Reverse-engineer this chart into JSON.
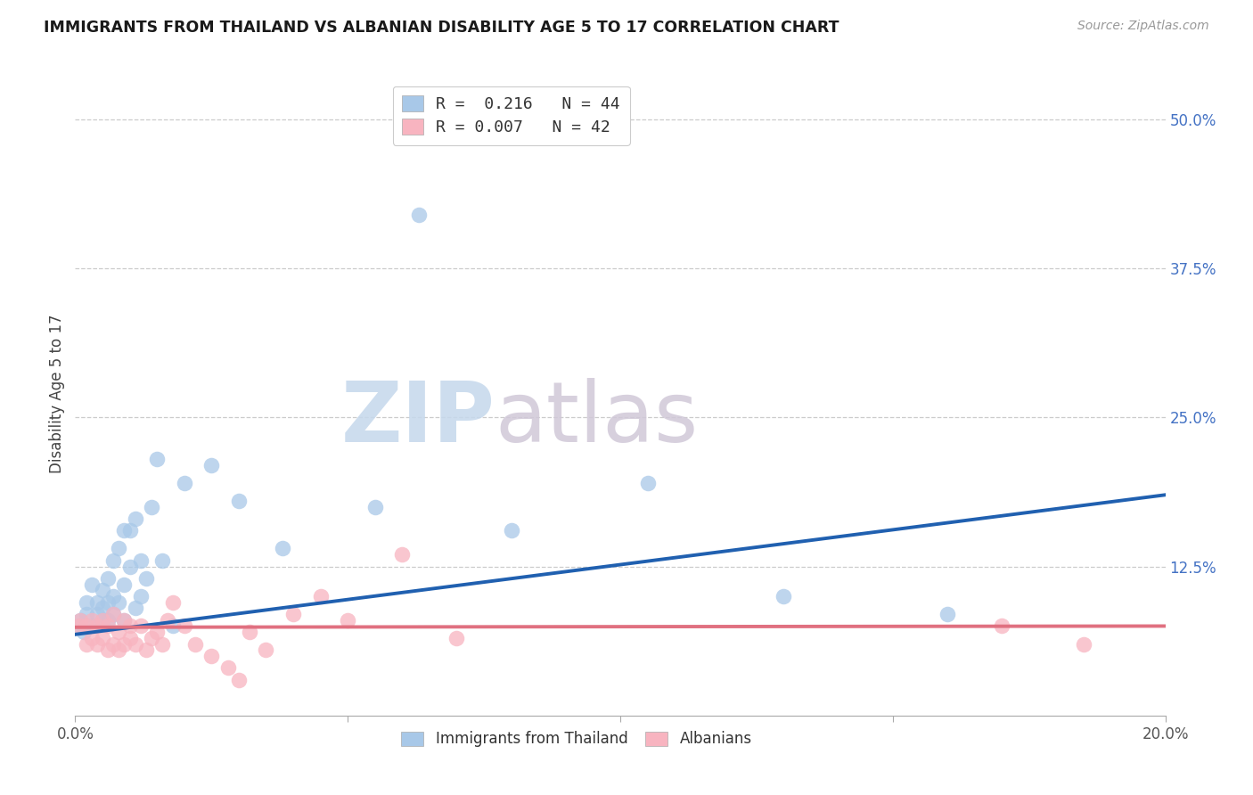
{
  "title": "IMMIGRANTS FROM THAILAND VS ALBANIAN DISABILITY AGE 5 TO 17 CORRELATION CHART",
  "source": "Source: ZipAtlas.com",
  "ylabel": "Disability Age 5 to 17",
  "xlim": [
    0.0,
    0.2
  ],
  "ylim": [
    0.0,
    0.54
  ],
  "xticks": [
    0.0,
    0.05,
    0.1,
    0.15,
    0.2
  ],
  "xtick_labels": [
    "0.0%",
    "",
    "",
    "",
    "20.0%"
  ],
  "ytick_positions_right": [
    0.125,
    0.25,
    0.375,
    0.5
  ],
  "ytick_labels_right": [
    "12.5%",
    "25.0%",
    "37.5%",
    "50.0%"
  ],
  "legend_label1": "R =  0.216   N = 44",
  "legend_label2": "R = 0.007   N = 42",
  "color_blue": "#a8c8e8",
  "color_pink": "#f8b4c0",
  "line_blue": "#2060b0",
  "line_pink": "#e07080",
  "background": "#ffffff",
  "watermark_zip": "ZIP",
  "watermark_atlas": "atlas",
  "thai_x": [
    0.0008,
    0.001,
    0.0015,
    0.002,
    0.002,
    0.003,
    0.003,
    0.004,
    0.004,
    0.005,
    0.005,
    0.005,
    0.006,
    0.006,
    0.006,
    0.007,
    0.007,
    0.007,
    0.008,
    0.008,
    0.009,
    0.009,
    0.009,
    0.01,
    0.01,
    0.011,
    0.011,
    0.012,
    0.012,
    0.013,
    0.014,
    0.015,
    0.016,
    0.018,
    0.02,
    0.025,
    0.03,
    0.038,
    0.055,
    0.063,
    0.08,
    0.105,
    0.13,
    0.16
  ],
  "thai_y": [
    0.075,
    0.08,
    0.07,
    0.085,
    0.095,
    0.075,
    0.11,
    0.085,
    0.095,
    0.08,
    0.09,
    0.105,
    0.08,
    0.095,
    0.115,
    0.085,
    0.1,
    0.13,
    0.095,
    0.14,
    0.11,
    0.08,
    0.155,
    0.155,
    0.125,
    0.165,
    0.09,
    0.13,
    0.1,
    0.115,
    0.175,
    0.215,
    0.13,
    0.075,
    0.195,
    0.21,
    0.18,
    0.14,
    0.175,
    0.42,
    0.155,
    0.195,
    0.1,
    0.085
  ],
  "alb_x": [
    0.0008,
    0.001,
    0.002,
    0.002,
    0.003,
    0.003,
    0.004,
    0.004,
    0.005,
    0.005,
    0.006,
    0.006,
    0.007,
    0.007,
    0.008,
    0.008,
    0.009,
    0.009,
    0.01,
    0.01,
    0.011,
    0.012,
    0.013,
    0.014,
    0.015,
    0.016,
    0.017,
    0.018,
    0.02,
    0.022,
    0.025,
    0.028,
    0.03,
    0.032,
    0.035,
    0.04,
    0.045,
    0.05,
    0.06,
    0.07,
    0.17,
    0.185
  ],
  "alb_y": [
    0.075,
    0.08,
    0.06,
    0.075,
    0.065,
    0.08,
    0.06,
    0.075,
    0.065,
    0.08,
    0.055,
    0.075,
    0.06,
    0.085,
    0.07,
    0.055,
    0.08,
    0.06,
    0.075,
    0.065,
    0.06,
    0.075,
    0.055,
    0.065,
    0.07,
    0.06,
    0.08,
    0.095,
    0.075,
    0.06,
    0.05,
    0.04,
    0.03,
    0.07,
    0.055,
    0.085,
    0.1,
    0.08,
    0.135,
    0.065,
    0.075,
    0.06
  ],
  "thai_line_x": [
    0.0,
    0.2
  ],
  "thai_line_y": [
    0.068,
    0.185
  ],
  "alb_line_x": [
    0.0,
    0.2
  ],
  "alb_line_y": [
    0.074,
    0.075
  ]
}
